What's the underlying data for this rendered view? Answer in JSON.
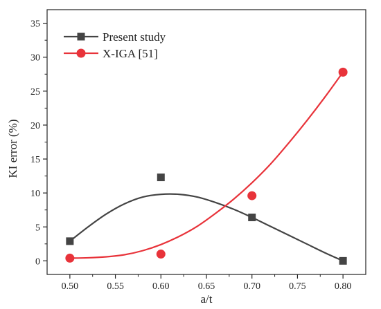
{
  "chart_data": {
    "type": "line",
    "xlabel": "a/t",
    "ylabel": "KI error (%)",
    "xlim": [
      0.475,
      0.825
    ],
    "ylim": [
      -2,
      37
    ],
    "x_ticks": [
      "0.50",
      "0.55",
      "0.60",
      "0.65",
      "0.70",
      "0.75",
      "0.80"
    ],
    "y_ticks": [
      "0",
      "5",
      "10",
      "15",
      "20",
      "25",
      "30",
      "35"
    ],
    "legend_position": "top-left",
    "series": [
      {
        "name": "Present study",
        "marker": "square",
        "color": "#444444",
        "x": [
          0.5,
          0.6,
          0.7,
          0.8
        ],
        "y": [
          2.9,
          12.3,
          6.4,
          0.0
        ],
        "fit_curve": {
          "x": [
            0.5,
            0.52,
            0.54,
            0.56,
            0.58,
            0.6,
            0.62,
            0.64,
            0.66,
            0.68,
            0.7,
            0.72,
            0.74,
            0.76,
            0.78,
            0.8
          ],
          "y": [
            2.9,
            5.0,
            6.9,
            8.4,
            9.4,
            9.8,
            9.8,
            9.4,
            8.6,
            7.6,
            6.4,
            5.1,
            3.8,
            2.5,
            1.2,
            0.0
          ]
        }
      },
      {
        "name": "X-IGA [51]",
        "marker": "circle",
        "color": "#e8333a",
        "x": [
          0.5,
          0.6,
          0.7,
          0.8
        ],
        "y": [
          0.4,
          1.0,
          9.6,
          27.8
        ],
        "fit_curve": {
          "x": [
            0.5,
            0.52,
            0.54,
            0.56,
            0.58,
            0.6,
            0.62,
            0.64,
            0.66,
            0.68,
            0.7,
            0.72,
            0.74,
            0.76,
            0.78,
            0.8
          ],
          "y": [
            0.4,
            0.45,
            0.6,
            0.9,
            1.5,
            2.4,
            3.6,
            5.1,
            7.0,
            9.1,
            11.5,
            14.2,
            17.3,
            20.6,
            24.1,
            27.8
          ]
        }
      }
    ]
  }
}
